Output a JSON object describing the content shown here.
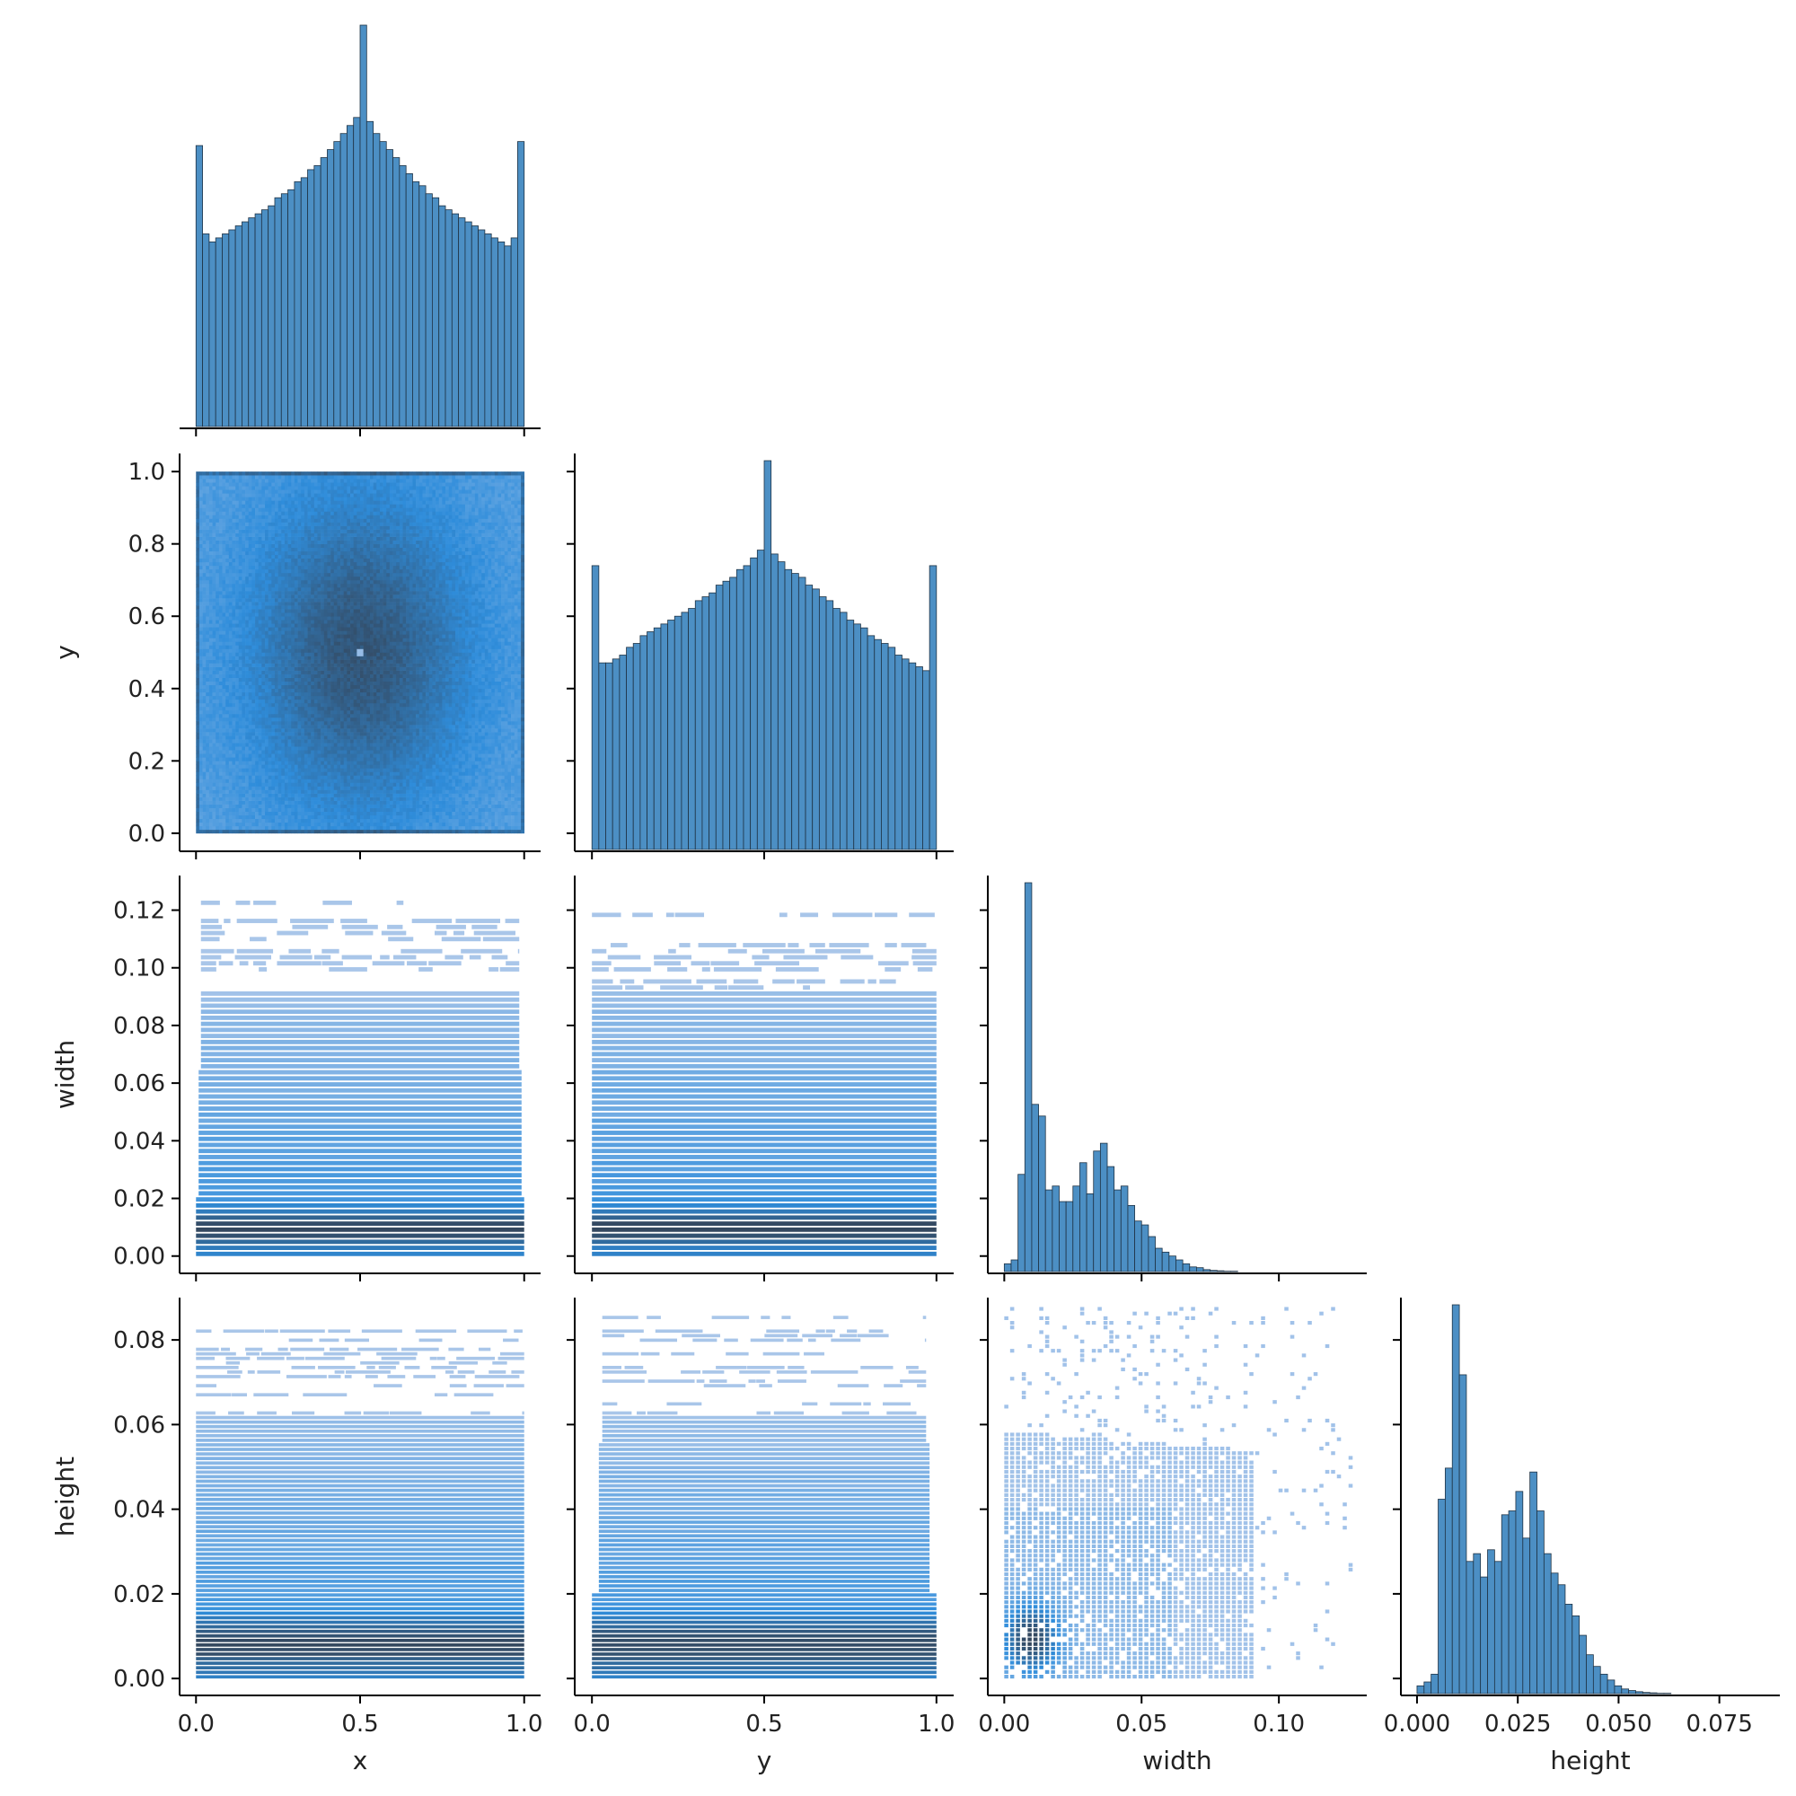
{
  "chart_data": {
    "type": "pairplot-corner",
    "variables": [
      "x",
      "y",
      "width",
      "height"
    ],
    "axis_labels": {
      "x": "x",
      "y": "y",
      "width": "width",
      "height": "height"
    },
    "ranges": {
      "x": [
        -0.05,
        1.05
      ],
      "y": [
        -0.05,
        1.05
      ],
      "width": [
        -0.006,
        0.132
      ],
      "height": [
        -0.004,
        0.09
      ]
    },
    "ticks": {
      "x": {
        "values": [
          0.0,
          0.5,
          1.0
        ],
        "labels": [
          "0.0",
          "0.5",
          "1.0"
        ]
      },
      "y": {
        "values": [
          0.0,
          0.2,
          0.4,
          0.6,
          0.8,
          1.0
        ],
        "labels": [
          "0.0",
          "0.2",
          "0.4",
          "0.6",
          "0.8",
          "1.0"
        ]
      },
      "y_bottom": {
        "values": [
          0.0,
          0.5,
          1.0
        ],
        "labels": [
          "0.0",
          "0.5",
          "1.0"
        ]
      },
      "width": {
        "values": [
          0.0,
          0.02,
          0.04,
          0.06,
          0.08,
          0.1,
          0.12
        ],
        "labels": [
          "0.00",
          "0.02",
          "0.04",
          "0.06",
          "0.08",
          "0.10",
          "0.12"
        ]
      },
      "width_bottom": {
        "values": [
          0.0,
          0.05,
          0.1
        ],
        "labels": [
          "0.00",
          "0.05",
          "0.10"
        ]
      },
      "height": {
        "values": [
          0.0,
          0.02,
          0.04,
          0.06,
          0.08
        ],
        "labels": [
          "0.00",
          "0.02",
          "0.04",
          "0.06",
          "0.08"
        ]
      },
      "height_bottom": {
        "values": [
          0.0,
          0.025,
          0.05,
          0.075
        ],
        "labels": [
          "0.000",
          "0.025",
          "0.050",
          "0.075"
        ]
      }
    },
    "diagonal_histograms": {
      "x": {
        "range": [
          0,
          1
        ],
        "bins": 50,
        "relative_counts": [
          0.7,
          0.48,
          0.46,
          0.47,
          0.48,
          0.49,
          0.5,
          0.51,
          0.52,
          0.53,
          0.54,
          0.55,
          0.57,
          0.58,
          0.59,
          0.61,
          0.62,
          0.64,
          0.65,
          0.67,
          0.69,
          0.71,
          0.73,
          0.75,
          0.77,
          1.0,
          0.76,
          0.73,
          0.71,
          0.69,
          0.67,
          0.65,
          0.63,
          0.61,
          0.6,
          0.58,
          0.57,
          0.55,
          0.54,
          0.53,
          0.52,
          0.51,
          0.5,
          0.49,
          0.48,
          0.47,
          0.46,
          0.45,
          0.47,
          0.71
        ]
      },
      "y": {
        "range": [
          0,
          1
        ],
        "bins": 50,
        "relative_counts": [
          0.73,
          0.48,
          0.48,
          0.49,
          0.5,
          0.52,
          0.53,
          0.55,
          0.56,
          0.57,
          0.58,
          0.59,
          0.6,
          0.61,
          0.62,
          0.64,
          0.65,
          0.66,
          0.68,
          0.69,
          0.7,
          0.72,
          0.73,
          0.75,
          0.77,
          1.0,
          0.76,
          0.74,
          0.72,
          0.71,
          0.7,
          0.68,
          0.67,
          0.65,
          0.64,
          0.62,
          0.61,
          0.59,
          0.58,
          0.57,
          0.55,
          0.54,
          0.53,
          0.52,
          0.5,
          0.49,
          0.48,
          0.47,
          0.46,
          0.73
        ]
      },
      "width": {
        "bin_edges_start": 0.0,
        "bin_width": 0.0025,
        "relative_counts": [
          0.02,
          0.03,
          0.25,
          1.0,
          0.43,
          0.4,
          0.21,
          0.22,
          0.18,
          0.18,
          0.22,
          0.28,
          0.2,
          0.31,
          0.33,
          0.27,
          0.21,
          0.22,
          0.17,
          0.13,
          0.12,
          0.09,
          0.06,
          0.05,
          0.04,
          0.03,
          0.02,
          0.012,
          0.01,
          0.005,
          0.003,
          0.002,
          0.001,
          0.001
        ]
      },
      "height": {
        "bin_edges_start": 0.0,
        "bin_width": 0.00175,
        "relative_counts": [
          0.02,
          0.03,
          0.05,
          0.5,
          0.58,
          1.0,
          0.82,
          0.34,
          0.36,
          0.3,
          0.37,
          0.34,
          0.46,
          0.47,
          0.52,
          0.4,
          0.57,
          0.47,
          0.36,
          0.31,
          0.28,
          0.23,
          0.2,
          0.15,
          0.1,
          0.07,
          0.05,
          0.035,
          0.02,
          0.012,
          0.008,
          0.005,
          0.003,
          0.002,
          0.001,
          0.001
        ]
      }
    },
    "offdiagonal_heatmaps": [
      {
        "x": "x",
        "y": "y",
        "kind": "2d-histogram"
      },
      {
        "x": "x",
        "y": "width",
        "kind": "2d-histogram"
      },
      {
        "x": "y",
        "y": "width",
        "kind": "2d-histogram"
      },
      {
        "x": "x",
        "y": "height",
        "kind": "2d-histogram"
      },
      {
        "x": "y",
        "y": "height",
        "kind": "2d-histogram"
      },
      {
        "x": "width",
        "y": "height",
        "kind": "2d-histogram"
      }
    ],
    "colors": {
      "hist_fill": "#4c8fc4",
      "hist_edge": "#1f3345",
      "heat_light": "#aec8ea",
      "heat_mid": "#2f8ddb",
      "heat_dark": "#34485f",
      "axis": "#000000"
    },
    "grid": false,
    "legend": "none"
  }
}
